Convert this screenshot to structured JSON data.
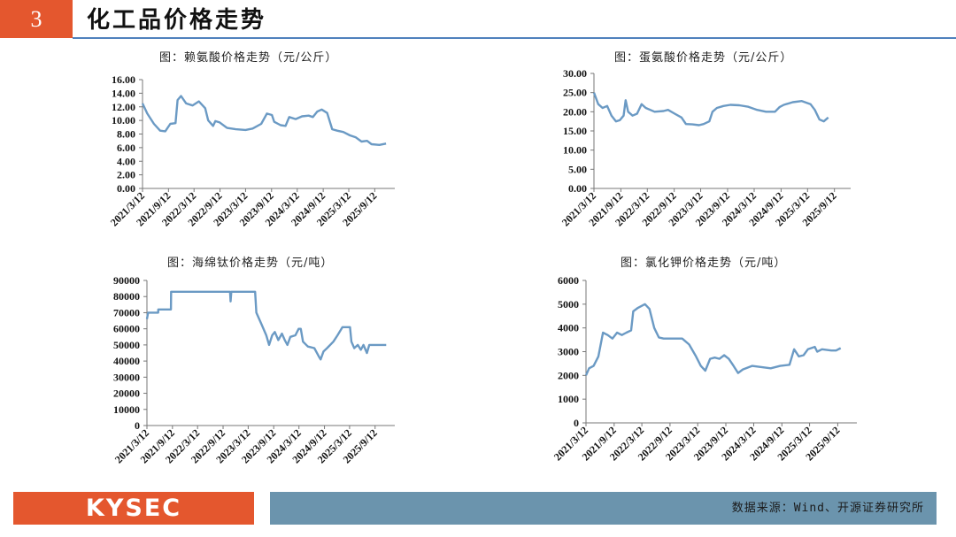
{
  "header": {
    "number": "3",
    "title": "化工品价格走势"
  },
  "footer": {
    "logo": "KYSEC",
    "source": "数据来源：Wind、开源证券研究所"
  },
  "chart_data": [
    {
      "type": "line",
      "title": "图：赖氨酸价格走势（元/公斤）",
      "ylim": [
        0,
        16
      ],
      "yticks": [
        "0.00",
        "2.00",
        "4.00",
        "6.00",
        "8.00",
        "10.00",
        "12.00",
        "14.00",
        "16.00"
      ],
      "xticks": [
        "2021/3/12",
        "2021/9/12",
        "2022/3/12",
        "2022/9/12",
        "2023/3/12",
        "2023/9/12",
        "2024/3/12",
        "2024/9/12",
        "2025/3/12",
        "2025/9/12"
      ],
      "x_end": "2026/2/1",
      "series": [
        {
          "points": [
            [
              "2021/3/12",
              12.5
            ],
            [
              "2021/4/15",
              11
            ],
            [
              "2021/6/1",
              9.5
            ],
            [
              "2021/7/15",
              8.5
            ],
            [
              "2021/8/20",
              8.4
            ],
            [
              "2021/9/25",
              9.5
            ],
            [
              "2021/11/1",
              9.6
            ],
            [
              "2021/11/15",
              13
            ],
            [
              "2021/12/10",
              13.6
            ],
            [
              "2022/1/15",
              12.5
            ],
            [
              "2022/3/1",
              12.2
            ],
            [
              "2022/4/15",
              12.8
            ],
            [
              "2022/5/30",
              11.8
            ],
            [
              "2022/6/20",
              10
            ],
            [
              "2022/7/25",
              9.2
            ],
            [
              "2022/8/10",
              9.9
            ],
            [
              "2022/9/10",
              9.7
            ],
            [
              "2022/11/1",
              8.9
            ],
            [
              "2023/1/1",
              8.7
            ],
            [
              "2023/3/12",
              8.6
            ],
            [
              "2023/5/1",
              8.8
            ],
            [
              "2023/7/1",
              9.5
            ],
            [
              "2023/8/10",
              11
            ],
            [
              "2023/9/15",
              10.8
            ],
            [
              "2023/10/1",
              9.8
            ],
            [
              "2023/11/15",
              9.3
            ],
            [
              "2023/12/20",
              9.2
            ],
            [
              "2024/1/15",
              10.5
            ],
            [
              "2024/3/1",
              10.2
            ],
            [
              "2024/4/15",
              10.6
            ],
            [
              "2024/6/1",
              10.7
            ],
            [
              "2024/7/1",
              10.5
            ],
            [
              "2024/8/1",
              11.3
            ],
            [
              "2024/9/1",
              11.6
            ],
            [
              "2024/10/10",
              11.1
            ],
            [
              "2024/11/15",
              8.7
            ],
            [
              "2024/12/20",
              8.5
            ],
            [
              "2025/2/1",
              8.3
            ],
            [
              "2025/3/20",
              7.8
            ],
            [
              "2025/5/1",
              7.5
            ],
            [
              "2025/6/10",
              6.9
            ],
            [
              "2025/7/20",
              7
            ],
            [
              "2025/8/20",
              6.5
            ],
            [
              "2025/10/15",
              6.4
            ],
            [
              "2025/12/1",
              6.6
            ]
          ]
        }
      ]
    },
    {
      "type": "line",
      "title": "图：蛋氨酸价格走势（元/公斤）",
      "ylim": [
        0,
        30
      ],
      "yticks": [
        "0.00",
        "5.00",
        "10.00",
        "15.00",
        "20.00",
        "25.00",
        "30.00"
      ],
      "xticks": [
        "2021/3/12",
        "2021/9/12",
        "2022/3/12",
        "2022/9/12",
        "2023/3/12",
        "2023/9/12",
        "2024/3/12",
        "2024/9/12",
        "2025/3/12",
        "2025/9/12"
      ],
      "x_end": "2026/1/1",
      "series": [
        {
          "points": [
            [
              "2021/3/12",
              25
            ],
            [
              "2021/4/10",
              22
            ],
            [
              "2021/5/10",
              21
            ],
            [
              "2021/6/10",
              21.5
            ],
            [
              "2021/7/10",
              19
            ],
            [
              "2021/8/10",
              17.5
            ],
            [
              "2021/9/5",
              17.8
            ],
            [
              "2021/10/1",
              19
            ],
            [
              "2021/10/15",
              23
            ],
            [
              "2021/11/1",
              20
            ],
            [
              "2021/12/1",
              19
            ],
            [
              "2022/1/1",
              19.5
            ],
            [
              "2022/2/1",
              22
            ],
            [
              "2022/3/1",
              21
            ],
            [
              "2022/4/1",
              20.5
            ],
            [
              "2022/5/1",
              20
            ],
            [
              "2022/7/1",
              20.2
            ],
            [
              "2022/8/1",
              20.5
            ],
            [
              "2022/9/15",
              19.5
            ],
            [
              "2022/11/1",
              18.5
            ],
            [
              "2022/12/1",
              16.8
            ],
            [
              "2023/1/15",
              16.7
            ],
            [
              "2023/3/1",
              16.5
            ],
            [
              "2023/4/1",
              16.8
            ],
            [
              "2023/5/10",
              17.5
            ],
            [
              "2023/6/1",
              20
            ],
            [
              "2023/7/1",
              21
            ],
            [
              "2023/8/15",
              21.5
            ],
            [
              "2023/10/1",
              21.8
            ],
            [
              "2023/12/1",
              21.7
            ],
            [
              "2024/2/1",
              21.3
            ],
            [
              "2024/4/1",
              20.5
            ],
            [
              "2024/6/1",
              20
            ],
            [
              "2024/8/1",
              20
            ],
            [
              "2024/9/1",
              21.2
            ],
            [
              "2024/10/1",
              21.8
            ],
            [
              "2024/12/1",
              22.5
            ],
            [
              "2025/2/1",
              22.8
            ],
            [
              "2025/4/1",
              22
            ],
            [
              "2025/5/1",
              20.5
            ],
            [
              "2025/6/1",
              18
            ],
            [
              "2025/7/1",
              17.5
            ],
            [
              "2025/8/1",
              18.5
            ]
          ]
        }
      ]
    },
    {
      "type": "line",
      "title": "图：海绵钛价格走势（元/吨）",
      "ylim": [
        0,
        90000
      ],
      "yticks": [
        "0",
        "10000",
        "20000",
        "30000",
        "40000",
        "50000",
        "60000",
        "70000",
        "80000",
        "90000"
      ],
      "xticks": [
        "2021/3/12",
        "2021/9/12",
        "2022/3/12",
        "2022/9/12",
        "2023/3/12",
        "2023/9/12",
        "2024/3/12",
        "2024/9/12",
        "2025/3/12",
        "2025/9/12"
      ],
      "x_end": "2026/2/1",
      "series": [
        {
          "points": [
            [
              "2021/3/12",
              66000
            ],
            [
              "2021/3/20",
              70000
            ],
            [
              "2021/6/1",
              70000
            ],
            [
              "2021/6/2",
              72000
            ],
            [
              "2021/9/1",
              72000
            ],
            [
              "2021/9/2",
              83000
            ],
            [
              "2022/11/1",
              83000
            ],
            [
              "2022/11/5",
              77000
            ],
            [
              "2022/11/10",
              83000
            ],
            [
              "2023/5/1",
              83000
            ],
            [
              "2023/5/10",
              70000
            ],
            [
              "2023/6/15",
              63000
            ],
            [
              "2023/7/20",
              56000
            ],
            [
              "2023/8/10",
              50000
            ],
            [
              "2023/9/1",
              56000
            ],
            [
              "2023/9/20",
              58000
            ],
            [
              "2023/10/15",
              53000
            ],
            [
              "2023/11/10",
              57000
            ],
            [
              "2023/12/1",
              53000
            ],
            [
              "2023/12/20",
              50000
            ],
            [
              "2024/1/10",
              55000
            ],
            [
              "2024/2/15",
              56000
            ],
            [
              "2024/3/10",
              60000
            ],
            [
              "2024/3/25",
              60000
            ],
            [
              "2024/4/10",
              52000
            ],
            [
              "2024/5/15",
              49000
            ],
            [
              "2024/7/1",
              48000
            ],
            [
              "2024/8/1",
              43000
            ],
            [
              "2024/8/15",
              41000
            ],
            [
              "2024/9/5",
              46000
            ],
            [
              "2024/10/1",
              48000
            ],
            [
              "2024/11/15",
              52000
            ],
            [
              "2024/12/15",
              56000
            ],
            [
              "2025/1/20",
              61000
            ],
            [
              "2025/3/15",
              61000
            ],
            [
              "2025/3/25",
              52000
            ],
            [
              "2025/4/15",
              48000
            ],
            [
              "2025/5/10",
              50000
            ],
            [
              "2025/6/1",
              47000
            ],
            [
              "2025/6/20",
              50000
            ],
            [
              "2025/7/15",
              45000
            ],
            [
              "2025/8/1",
              50000
            ],
            [
              "2025/12/1",
              50000
            ]
          ]
        }
      ]
    },
    {
      "type": "line",
      "title": "图：氯化钾价格走势（元/吨）",
      "ylim": [
        0,
        6000
      ],
      "yticks": [
        "0",
        "1000",
        "2000",
        "3000",
        "4000",
        "5000",
        "6000"
      ],
      "xticks": [
        "2021/3/12",
        "2021/9/12",
        "2022/3/12",
        "2022/9/12",
        "2023/3/12",
        "2023/9/12",
        "2024/3/12",
        "2024/9/12",
        "2025/3/12",
        "2025/9/12"
      ],
      "x_end": "2026/1/15",
      "series": [
        {
          "points": [
            [
              "2021/3/12",
              2000
            ],
            [
              "2021/4/1",
              2300
            ],
            [
              "2021/5/1",
              2400
            ],
            [
              "2021/6/1",
              2800
            ],
            [
              "2021/7/1",
              3800
            ],
            [
              "2021/8/1",
              3700
            ],
            [
              "2021/9/1",
              3550
            ],
            [
              "2021/10/1",
              3800
            ],
            [
              "2021/11/1",
              3700
            ],
            [
              "2021/12/1",
              3800
            ],
            [
              "2022/1/1",
              3900
            ],
            [
              "2022/1/15",
              4700
            ],
            [
              "2022/2/15",
              4850
            ],
            [
              "2022/4/1",
              5000
            ],
            [
              "2022/5/1",
              4800
            ],
            [
              "2022/6/1",
              4000
            ],
            [
              "2022/7/1",
              3600
            ],
            [
              "2022/8/1",
              3550
            ],
            [
              "2022/10/1",
              3550
            ],
            [
              "2022/12/1",
              3550
            ],
            [
              "2023/1/15",
              3300
            ],
            [
              "2023/3/1",
              2800
            ],
            [
              "2023/4/1",
              2400
            ],
            [
              "2023/5/1",
              2200
            ],
            [
              "2023/6/1",
              2700
            ],
            [
              "2023/7/1",
              2750
            ],
            [
              "2023/8/1",
              2700
            ],
            [
              "2023/9/1",
              2850
            ],
            [
              "2023/10/1",
              2700
            ],
            [
              "2023/11/1",
              2400
            ],
            [
              "2023/12/1",
              2100
            ],
            [
              "2024/1/1",
              2250
            ],
            [
              "2024/3/1",
              2400
            ],
            [
              "2024/5/1",
              2350
            ],
            [
              "2024/7/1",
              2300
            ],
            [
              "2024/9/1",
              2400
            ],
            [
              "2024/11/1",
              2450
            ],
            [
              "2024/12/1",
              3100
            ],
            [
              "2025/1/1",
              2800
            ],
            [
              "2025/2/1",
              2850
            ],
            [
              "2025/3/1",
              3100
            ],
            [
              "2025/4/15",
              3200
            ],
            [
              "2025/5/1",
              3000
            ],
            [
              "2025/6/1",
              3100
            ],
            [
              "2025/8/1",
              3050
            ],
            [
              "2025/9/1",
              3050
            ],
            [
              "2025/10/1",
              3150
            ]
          ]
        }
      ]
    }
  ]
}
